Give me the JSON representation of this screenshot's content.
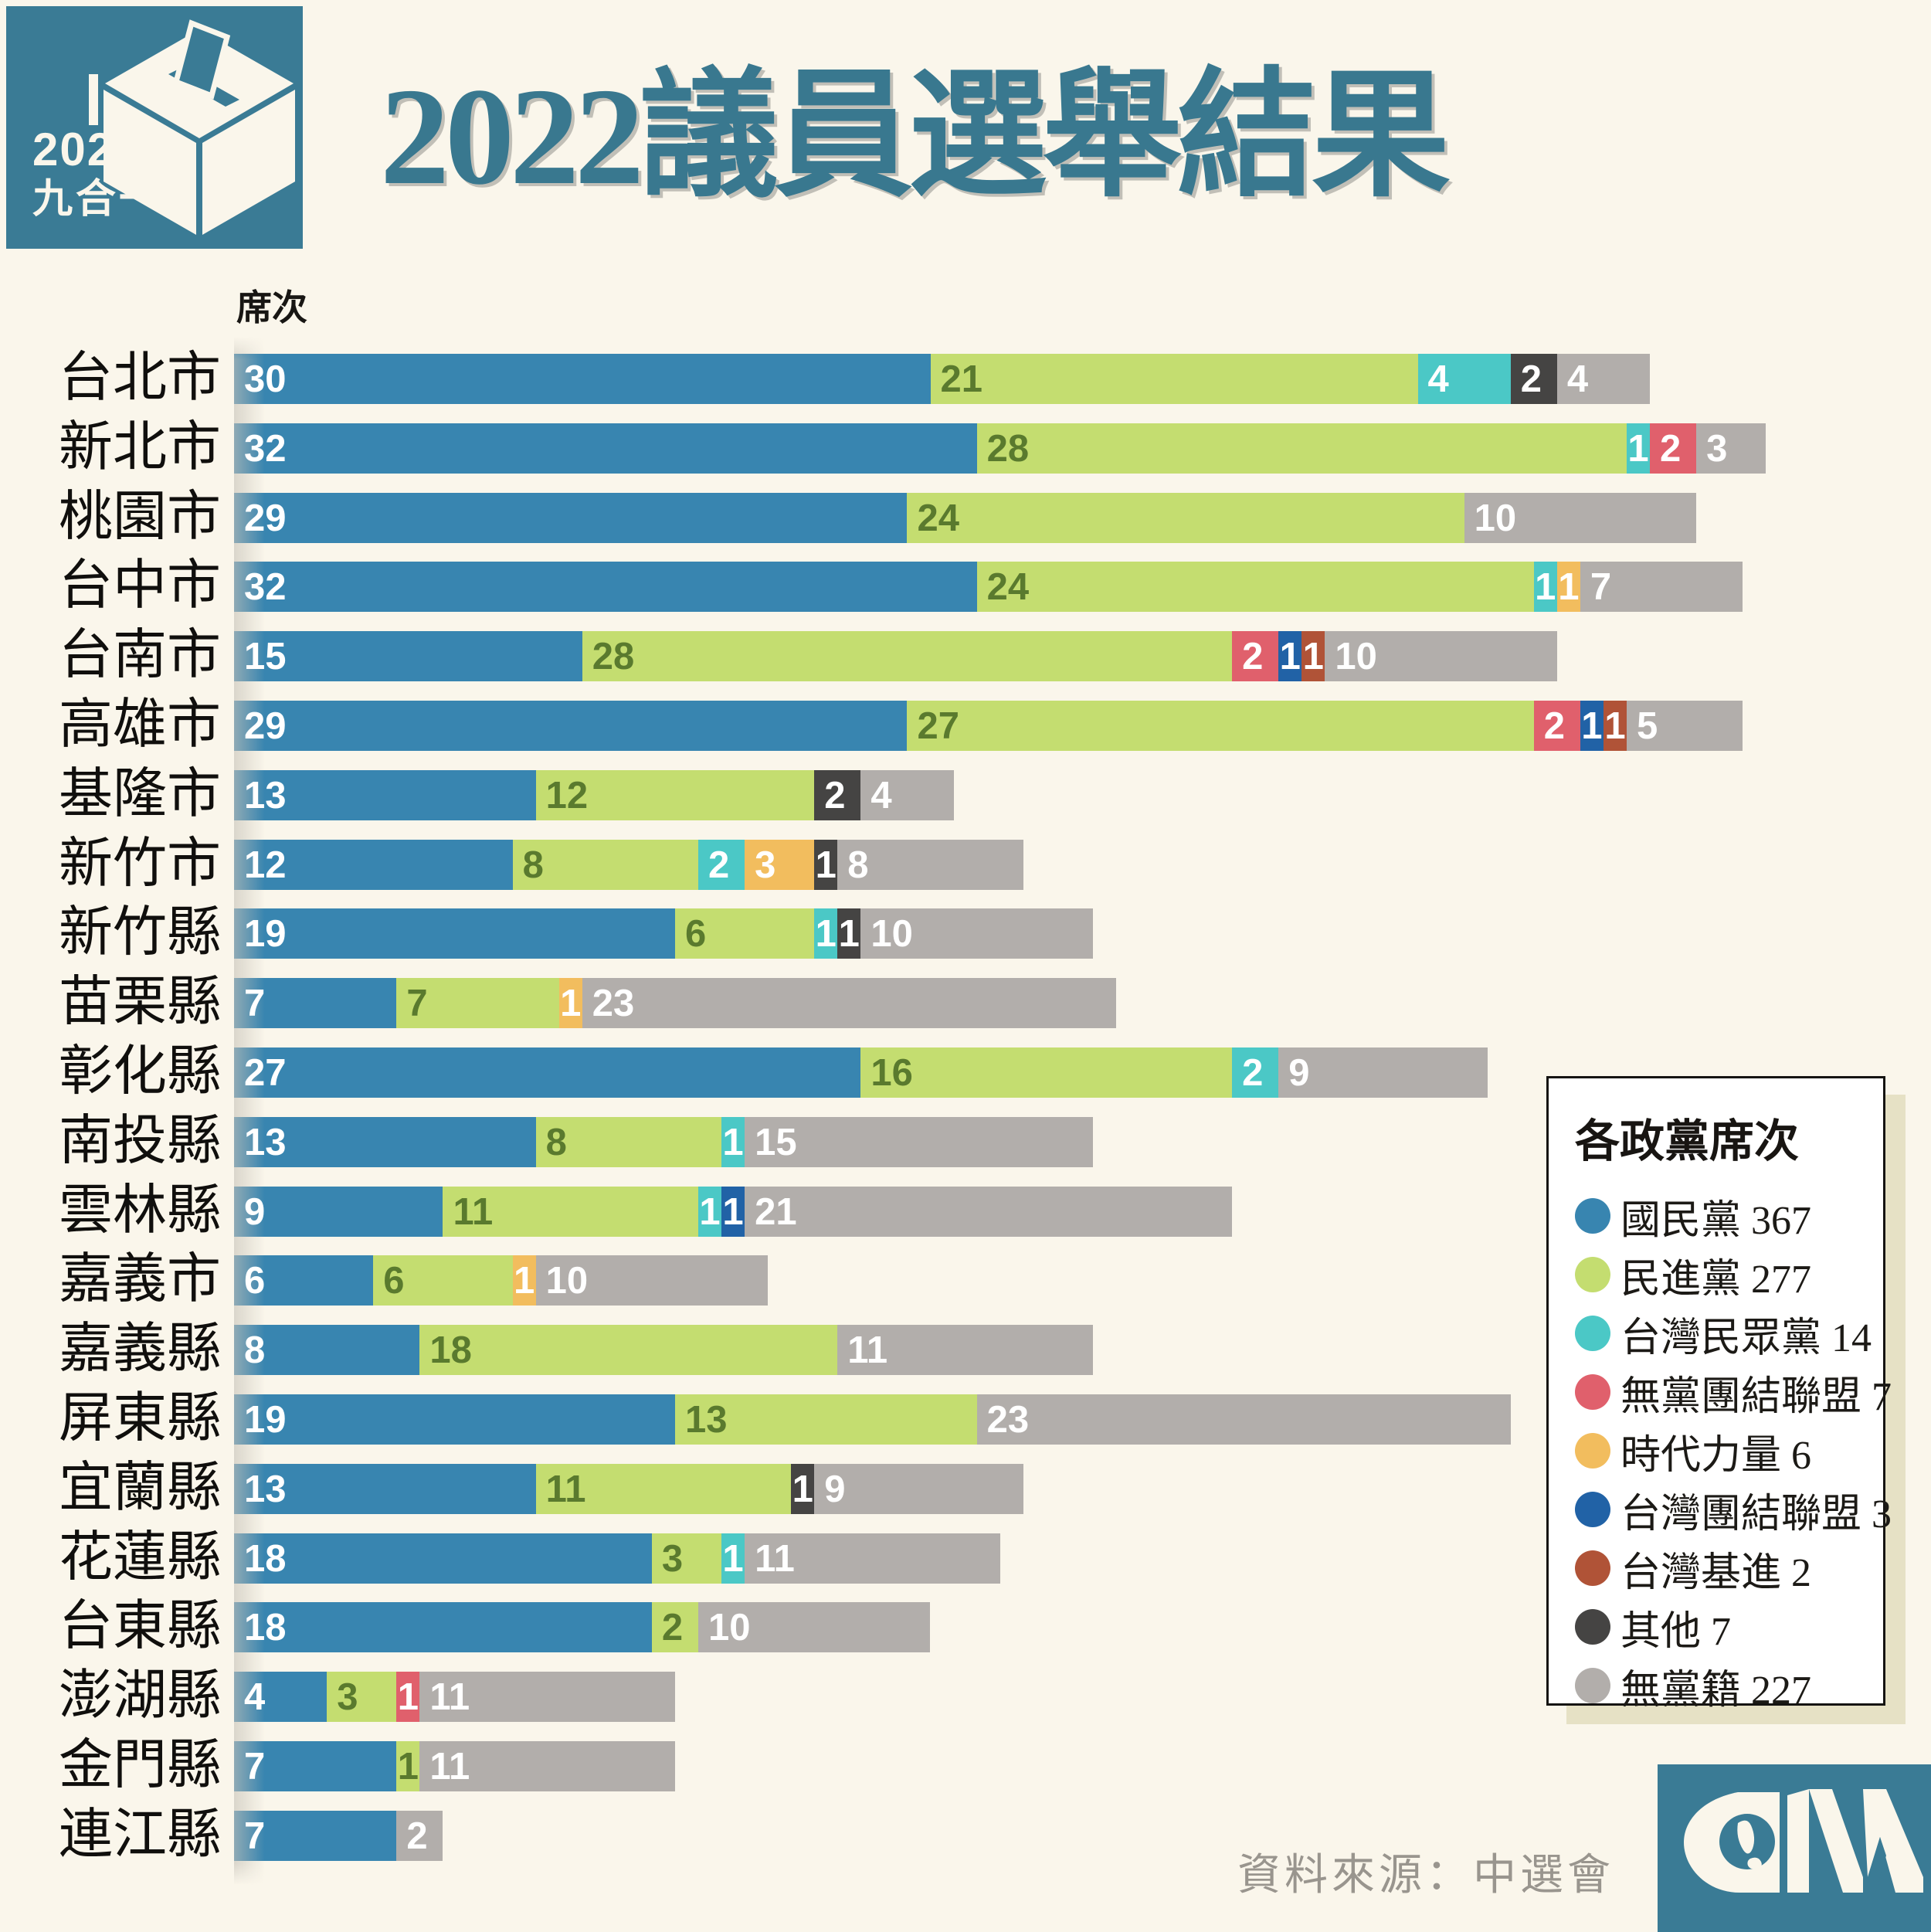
{
  "theme": {
    "background": "#faf6eb",
    "accent_teal": "#3a7b95",
    "title_color": "#39788f",
    "source_color": "#99958e",
    "legend_shadow": "#e6e1c5"
  },
  "header": {
    "badge_year": "2022",
    "badge_label": "九合一",
    "title": "2022議員選舉結果"
  },
  "chart_data": {
    "type": "bar",
    "stacked": true,
    "orientation": "horizontal",
    "axis_label": "席次",
    "legend_title": "各政黨席次",
    "legend_position": "right-bottom",
    "categories": [
      "台北市",
      "新北市",
      "桃園市",
      "台中市",
      "台南市",
      "高雄市",
      "基隆市",
      "新竹市",
      "新竹縣",
      "苗栗縣",
      "彰化縣",
      "南投縣",
      "雲林縣",
      "嘉義市",
      "嘉義縣",
      "屏東縣",
      "宜蘭縣",
      "花蓮縣",
      "台東縣",
      "澎湖縣",
      "金門縣",
      "連江縣"
    ],
    "series": [
      {
        "name": "國民黨",
        "total": 367,
        "color": "#3885b0",
        "value_text_color": "#ffffff",
        "values": [
          30,
          32,
          29,
          32,
          15,
          29,
          13,
          12,
          19,
          7,
          27,
          13,
          9,
          6,
          8,
          19,
          13,
          18,
          18,
          4,
          7,
          7
        ]
      },
      {
        "name": "民進黨",
        "total": 277,
        "color": "#c4dd70",
        "value_text_color": "#5a7a2e",
        "values": [
          21,
          28,
          24,
          24,
          28,
          27,
          12,
          8,
          6,
          7,
          16,
          8,
          11,
          6,
          18,
          13,
          11,
          3,
          2,
          3,
          1,
          0
        ]
      },
      {
        "name": "台灣民眾黨",
        "total": 14,
        "color": "#4bc8c6",
        "value_text_color": "#ffffff",
        "values": [
          4,
          1,
          0,
          1,
          0,
          0,
          0,
          2,
          1,
          0,
          2,
          1,
          1,
          0,
          0,
          0,
          0,
          1,
          0,
          0,
          0,
          0
        ]
      },
      {
        "name": "無黨團結聯盟",
        "total": 7,
        "color": "#e0606c",
        "value_text_color": "#ffffff",
        "values": [
          0,
          2,
          0,
          0,
          2,
          2,
          0,
          0,
          0,
          0,
          0,
          0,
          0,
          0,
          0,
          0,
          0,
          0,
          0,
          1,
          0,
          0
        ]
      },
      {
        "name": "時代力量",
        "total": 6,
        "color": "#f2bd5e",
        "value_text_color": "#ffffff",
        "values": [
          0,
          0,
          0,
          1,
          0,
          0,
          0,
          3,
          0,
          1,
          0,
          0,
          0,
          1,
          0,
          0,
          0,
          0,
          0,
          0,
          0,
          0
        ]
      },
      {
        "name": "台灣團結聯盟",
        "total": 3,
        "color": "#2162a6",
        "value_text_color": "#ffffff",
        "values": [
          0,
          0,
          0,
          0,
          1,
          1,
          0,
          0,
          0,
          0,
          0,
          0,
          1,
          0,
          0,
          0,
          0,
          0,
          0,
          0,
          0,
          0
        ]
      },
      {
        "name": "台灣基進",
        "total": 2,
        "color": "#b05337",
        "value_text_color": "#ffffff",
        "values": [
          0,
          0,
          0,
          0,
          1,
          1,
          0,
          0,
          0,
          0,
          0,
          0,
          0,
          0,
          0,
          0,
          0,
          0,
          0,
          0,
          0,
          0
        ]
      },
      {
        "name": "其他",
        "total": 7,
        "color": "#454443",
        "value_text_color": "#ffffff",
        "values": [
          2,
          0,
          0,
          0,
          0,
          0,
          2,
          1,
          1,
          0,
          0,
          0,
          0,
          0,
          0,
          0,
          1,
          0,
          0,
          0,
          0,
          0
        ]
      },
      {
        "name": "無黨籍",
        "total": 227,
        "color": "#b2aeab",
        "value_text_color": "#ffffff",
        "values": [
          4,
          3,
          10,
          7,
          10,
          5,
          4,
          8,
          10,
          23,
          9,
          15,
          21,
          10,
          11,
          23,
          9,
          11,
          10,
          11,
          11,
          2
        ]
      }
    ]
  },
  "footer": {
    "source": "資料來源：中選會",
    "agency": "CNA"
  }
}
